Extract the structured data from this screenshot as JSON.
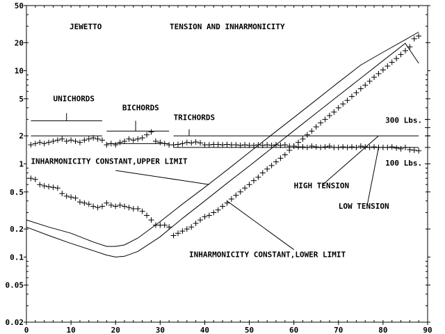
{
  "chart_data": {
    "type": "scatter",
    "title": "TENSION AND INHARMONICITY",
    "subtitle": "JEWETTO",
    "xlabel": "",
    "ylabel": "",
    "x_scale": "linear",
    "y_scale": "log",
    "xlim": [
      0,
      90
    ],
    "ylim": [
      0.02,
      50
    ],
    "grid": false,
    "x_ticks": [
      0,
      10,
      20,
      30,
      40,
      50,
      60,
      70,
      80,
      90
    ],
    "y_ticks": [
      0.02,
      0.05,
      0.1,
      0.2,
      0.5,
      1,
      2,
      5,
      10,
      20,
      50
    ],
    "y_tick_labels": [
      "0.02",
      "0.05",
      "0.1",
      "0.2",
      "0.5",
      "1",
      "2",
      "5",
      "10",
      "20",
      "50"
    ],
    "series": [
      {
        "kind": "points",
        "marker": "plus",
        "x": [
          1,
          2,
          3,
          4,
          5,
          6,
          7,
          8,
          9,
          10,
          11,
          12,
          13,
          14,
          15,
          16,
          17,
          18,
          19,
          20,
          21,
          22,
          23,
          24,
          25,
          26,
          27,
          28,
          29,
          30,
          31,
          32,
          33,
          34,
          35,
          36,
          37,
          38,
          39,
          40,
          41,
          42,
          43,
          44,
          45,
          46,
          47,
          48,
          49,
          50,
          51,
          52,
          53,
          54,
          55,
          56,
          57,
          58,
          59,
          60,
          61,
          62,
          63,
          64,
          65,
          66,
          67,
          68,
          69,
          70,
          71,
          72,
          73,
          74,
          75,
          76,
          77,
          78,
          79,
          80,
          81,
          82,
          83,
          84,
          85,
          86,
          87,
          88
        ],
        "y": [
          1.6,
          1.65,
          1.7,
          1.65,
          1.7,
          1.75,
          1.8,
          1.85,
          1.75,
          1.8,
          1.75,
          1.7,
          1.8,
          1.85,
          1.9,
          1.85,
          1.8,
          1.6,
          1.65,
          1.6,
          1.7,
          1.75,
          1.85,
          1.8,
          1.85,
          1.9,
          2.05,
          2.2,
          1.75,
          1.7,
          1.65,
          1.6,
          1.6,
          1.62,
          1.65,
          1.7,
          1.68,
          1.72,
          1.68,
          1.6,
          1.6,
          1.62,
          1.62,
          1.6,
          1.62,
          1.6,
          1.6,
          1.58,
          1.6,
          1.58,
          1.58,
          1.6,
          1.58,
          1.6,
          1.58,
          1.6,
          1.58,
          1.6,
          1.55,
          1.55,
          1.52,
          1.52,
          1.5,
          1.55,
          1.52,
          1.5,
          1.52,
          1.55,
          1.5,
          1.5,
          1.52,
          1.5,
          1.52,
          1.5,
          1.55,
          1.52,
          1.5,
          1.52,
          1.5,
          1.5,
          1.5,
          1.52,
          1.48,
          1.45,
          1.5,
          1.42,
          1.4,
          1.38
        ]
      },
      {
        "kind": "points",
        "marker": "plus",
        "x": [
          1,
          2,
          3,
          4,
          5,
          6,
          7,
          8,
          9,
          10,
          11,
          12,
          13,
          14,
          15,
          16,
          17,
          18,
          19,
          20,
          21,
          22,
          23,
          24,
          25,
          26,
          27,
          28,
          29,
          30,
          31,
          32,
          33,
          34,
          35,
          36,
          37,
          38,
          39,
          40,
          41,
          42,
          43,
          44,
          45,
          46,
          47,
          48,
          49,
          50,
          51,
          52,
          53,
          54,
          55,
          56,
          57,
          58,
          59,
          60,
          61,
          62,
          63,
          64,
          65,
          66,
          67,
          68,
          69,
          70,
          71,
          72,
          73,
          74,
          75,
          76,
          77,
          78,
          79,
          80,
          81,
          82,
          83,
          84,
          85,
          86,
          87,
          88
        ],
        "y": [
          0.7,
          0.68,
          0.6,
          0.58,
          0.57,
          0.56,
          0.55,
          0.48,
          0.45,
          0.44,
          0.43,
          0.39,
          0.38,
          0.37,
          0.35,
          0.34,
          0.35,
          0.38,
          0.36,
          0.35,
          0.36,
          0.35,
          0.34,
          0.33,
          0.33,
          0.31,
          0.28,
          0.25,
          0.22,
          0.22,
          0.22,
          0.21,
          0.17,
          0.18,
          0.19,
          0.2,
          0.21,
          0.23,
          0.25,
          0.27,
          0.28,
          0.3,
          0.32,
          0.35,
          0.38,
          0.42,
          0.46,
          0.5,
          0.55,
          0.6,
          0.66,
          0.72,
          0.8,
          0.88,
          0.96,
          1.05,
          1.15,
          1.25,
          1.4,
          1.55,
          1.7,
          1.85,
          2.05,
          2.25,
          2.5,
          2.75,
          3.0,
          3.3,
          3.6,
          4.0,
          4.4,
          4.8,
          5.3,
          5.8,
          6.4,
          7.0,
          7.7,
          8.5,
          9.3,
          10.2,
          11.2,
          12.3,
          13.5,
          14.9,
          16.4,
          18.0,
          22,
          23.5
        ]
      },
      {
        "kind": "line",
        "x": [
          0,
          5,
          10,
          15,
          18,
          20,
          22,
          25,
          30,
          35,
          40,
          45,
          50,
          55,
          60,
          65,
          70,
          75,
          80,
          85,
          88
        ],
        "y": [
          0.25,
          0.21,
          0.18,
          0.145,
          0.13,
          0.13,
          0.135,
          0.16,
          0.24,
          0.37,
          0.56,
          0.86,
          1.33,
          2.05,
          3.15,
          4.85,
          7.5,
          11.5,
          15.8,
          21.5,
          26
        ]
      },
      {
        "kind": "line",
        "x": [
          0,
          5,
          10,
          15,
          18,
          20,
          22,
          25,
          30,
          35,
          40,
          45,
          50,
          55,
          60,
          65,
          70,
          75,
          80,
          85,
          88
        ],
        "y": [
          0.21,
          0.17,
          0.14,
          0.117,
          0.105,
          0.1,
          0.102,
          0.115,
          0.165,
          0.26,
          0.4,
          0.62,
          0.95,
          1.47,
          2.27,
          3.5,
          5.4,
          8.3,
          12.8,
          19.7,
          12
        ]
      },
      {
        "kind": "hline",
        "x0": 1,
        "x1": 17,
        "y": 2.9
      },
      {
        "kind": "hline",
        "x0": 1,
        "x1": 17,
        "y": 2.0
      },
      {
        "kind": "hline",
        "x0": 18,
        "x1": 32,
        "y": 2.25
      },
      {
        "kind": "hline",
        "x0": 18,
        "x1": 32,
        "y": 1.65
      },
      {
        "kind": "hline",
        "x0": 33,
        "x1": 88,
        "y": 2.0
      },
      {
        "kind": "hline",
        "x0": 33,
        "x1": 88,
        "y": 1.5
      }
    ],
    "right_points": [
      3.0,
      2.45,
      2.0,
      1.5,
      1.0
    ],
    "annotations": [
      {
        "text": "UNICHORDS",
        "x": 6,
        "y": 4.7
      },
      {
        "text": "BICHORDS",
        "x": 21.5,
        "y": 3.75
      },
      {
        "text": "TRICHORDS",
        "x": 33,
        "y": 2.95
      },
      {
        "text": "300 Lbs.",
        "x": 80.5,
        "y": 2.75
      },
      {
        "text": "100 Lbs.",
        "x": 80.5,
        "y": 0.96
      },
      {
        "text": "INHARMONICITY CONSTANT,UPPER LIMIT",
        "x": 1,
        "y": 1.0
      },
      {
        "text": "HIGH TENSION",
        "x": 60,
        "y": 0.55
      },
      {
        "text": "LOW TENSION",
        "x": 70,
        "y": 0.33
      },
      {
        "text": "INHARMONICITY CONSTANT,LOWER LIMIT",
        "x": 36.5,
        "y": 0.1
      }
    ],
    "leaders": [
      {
        "x0": 9,
        "y0": 3.5,
        "x1": 9,
        "y1": 2.9
      },
      {
        "x0": 24.5,
        "y0": 2.9,
        "x1": 24.5,
        "y1": 2.25
      },
      {
        "x0": 36.5,
        "y0": 2.35,
        "x1": 36.5,
        "y1": 2.0
      },
      {
        "x0": 20,
        "y0": 0.85,
        "x1": 41,
        "y1": 0.6
      },
      {
        "x0": 66.5,
        "y0": 0.6,
        "x1": 79,
        "y1": 2.0
      },
      {
        "x0": 76.5,
        "y0": 0.37,
        "x1": 79,
        "y1": 1.5
      },
      {
        "x0": 60,
        "y0": 0.12,
        "x1": 45,
        "y1": 0.4
      }
    ]
  }
}
